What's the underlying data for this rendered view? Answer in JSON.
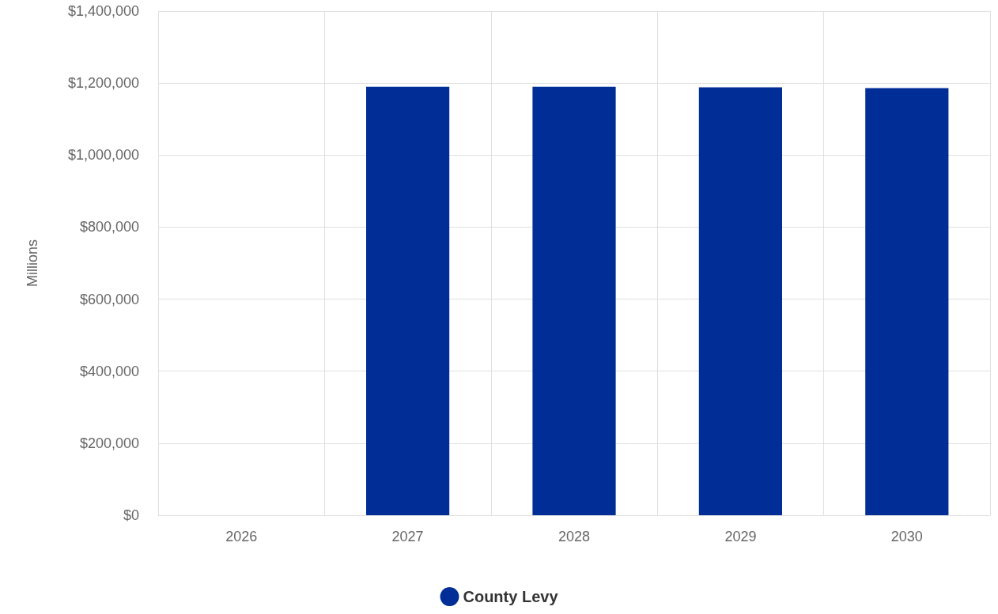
{
  "chart_data": {
    "type": "bar",
    "ylabel": "Millions",
    "categories": [
      "2026",
      "2027",
      "2028",
      "2029",
      "2030"
    ],
    "series": [
      {
        "name": "County Levy",
        "color": "#002d96",
        "values": [
          0,
          1190000,
          1190000,
          1188000,
          1186000
        ]
      }
    ],
    "ylim": [
      0,
      1400000
    ],
    "yticks": [
      {
        "value": 0,
        "label": "$0"
      },
      {
        "value": 200000,
        "label": "$200,000"
      },
      {
        "value": 400000,
        "label": "$400,000"
      },
      {
        "value": 600000,
        "label": "$600,000"
      },
      {
        "value": 800000,
        "label": "$800,000"
      },
      {
        "value": 1000000,
        "label": "$1,000,000"
      },
      {
        "value": 1200000,
        "label": "$1,200,000"
      },
      {
        "value": 1400000,
        "label": "$1,400,000"
      }
    ],
    "grid": true,
    "legend": "bottom"
  }
}
